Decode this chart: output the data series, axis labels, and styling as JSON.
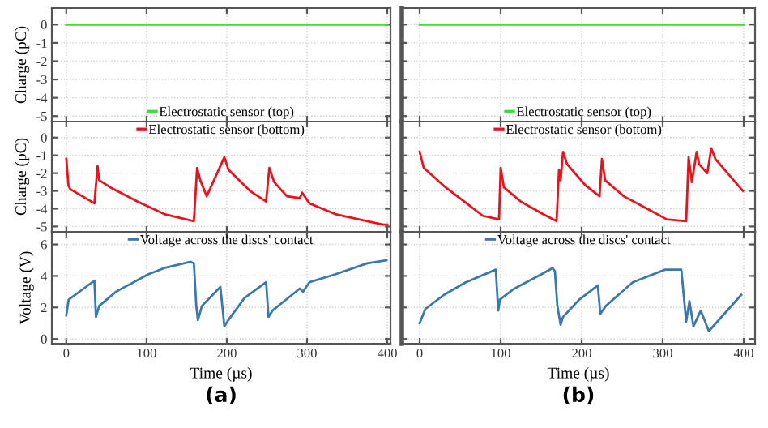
{
  "chart_data": [
    {
      "type": "line",
      "ylabel": "Charge (pC)",
      "x": [
        0,
        50,
        100,
        150,
        200,
        250,
        300,
        350,
        400
      ],
      "xlim": [
        -18,
        404
      ],
      "ylim": [
        -5.3,
        0.9
      ],
      "xticks": [
        0,
        100,
        200,
        300,
        400
      ],
      "yticks": [
        -5,
        -4,
        -3,
        -2,
        -1,
        0
      ],
      "tick_labels": "y",
      "grid": true,
      "legend": "bottom",
      "series": [
        {
          "name": "Electrostatic sensor (top)",
          "color": "#3ddc3d",
          "values": [
            0,
            0,
            0,
            0,
            0,
            0,
            0,
            0,
            0
          ]
        }
      ]
    },
    {
      "type": "line",
      "ylabel": "Charge (pC)",
      "x": [
        0,
        2.7,
        5,
        35,
        39,
        41,
        55,
        89,
        122,
        159,
        163,
        167,
        175,
        197,
        202,
        229,
        249,
        253,
        259,
        275,
        291,
        294,
        303,
        335,
        375,
        395,
        400
      ],
      "xlim": [
        -18,
        404
      ],
      "ylim": [
        -5.3,
        0.9
      ],
      "xticks": [
        0,
        100,
        200,
        300,
        400
      ],
      "yticks": [
        -5,
        -4,
        -3,
        -2,
        -1,
        0
      ],
      "tick_labels": "y",
      "grid": true,
      "legend": "top",
      "series": [
        {
          "name": "Electrostatic sensor (bottom)",
          "color": "#e8131c",
          "values": [
            -1.2,
            -2.7,
            -2.9,
            -3.7,
            -1.6,
            -2.4,
            -2.8,
            -3.6,
            -4.3,
            -4.7,
            -1.7,
            -2.4,
            -3.3,
            -1.1,
            -1.8,
            -3.0,
            -3.6,
            -1.7,
            -2.5,
            -3.3,
            -3.4,
            -3.1,
            -3.7,
            -4.3,
            -4.7,
            -4.9,
            -4.9
          ]
        }
      ]
    },
    {
      "type": "line",
      "ylabel": "Voltage (V)",
      "xlabel": "Time (µs)",
      "x": [
        0,
        3,
        35,
        37,
        41,
        62,
        102,
        122,
        155,
        159,
        162,
        164,
        169,
        192,
        197,
        202,
        222,
        249,
        252,
        257,
        269,
        291,
        295,
        303,
        335,
        375,
        399
      ],
      "xlim": [
        -18,
        404
      ],
      "ylim": [
        -0.3,
        6.8
      ],
      "xticks": [
        0,
        100,
        200,
        300,
        400
      ],
      "yticks": [
        0,
        2,
        4,
        6
      ],
      "grid": true,
      "legend": "top",
      "annotations": [
        "(a)"
      ],
      "series": [
        {
          "name": "Voltage across the discs' contact",
          "color": "#3b78b0",
          "values": [
            1.5,
            2.5,
            3.7,
            1.4,
            2.1,
            3.0,
            4.1,
            4.5,
            4.9,
            4.8,
            2.1,
            1.2,
            2.1,
            3.3,
            0.8,
            1.2,
            2.6,
            3.6,
            1.4,
            1.8,
            2.3,
            3.2,
            3.0,
            3.6,
            4.1,
            4.8,
            5.0
          ]
        }
      ]
    },
    {
      "type": "line",
      "x": [
        0,
        50,
        100,
        150,
        200,
        250,
        300,
        350,
        400
      ],
      "xlim": [
        -22,
        414
      ],
      "ylim": [
        -5.3,
        0.9
      ],
      "xticks": [
        0,
        100,
        200,
        300,
        400
      ],
      "yticks": [
        -5,
        -4,
        -3,
        -2,
        -1,
        0
      ],
      "tick_labels": false,
      "grid": true,
      "legend": "bottom",
      "series": [
        {
          "name": "Electrostatic sensor (top)",
          "color": "#3ddc3d",
          "values": [
            0,
            0,
            0,
            0,
            0,
            0,
            0,
            0,
            0
          ]
        }
      ]
    },
    {
      "type": "line",
      "x": [
        0,
        5,
        32,
        58,
        78,
        98,
        100,
        104,
        125,
        152,
        169,
        172,
        174,
        177,
        182,
        205,
        222,
        225,
        229,
        252,
        285,
        305,
        329,
        332,
        336,
        342,
        345,
        355,
        360,
        365,
        399
      ],
      "xlim": [
        -22,
        414
      ],
      "ylim": [
        -5.3,
        0.9
      ],
      "xticks": [
        0,
        100,
        200,
        300,
        400
      ],
      "yticks": [
        -5,
        -4,
        -3,
        -2,
        -1,
        0
      ],
      "tick_labels": false,
      "grid": true,
      "legend": "top",
      "series": [
        {
          "name": "Electrostatic sensor (bottom)",
          "color": "#e8131c",
          "values": [
            -0.8,
            -1.7,
            -2.8,
            -3.7,
            -4.4,
            -4.6,
            -1.7,
            -2.8,
            -3.6,
            -4.3,
            -4.7,
            -1.8,
            -2.4,
            -0.8,
            -1.5,
            -2.7,
            -3.3,
            -1.2,
            -2.4,
            -3.3,
            -4.1,
            -4.6,
            -4.7,
            -1.1,
            -2.5,
            -0.8,
            -1.5,
            -2.0,
            -0.6,
            -1.2,
            -3.0
          ]
        }
      ]
    },
    {
      "type": "line",
      "xlabel": "Time (µs)",
      "x": [
        0,
        7,
        30,
        57,
        94,
        97,
        99,
        117,
        150,
        164,
        167,
        170,
        174,
        177,
        197,
        220,
        223,
        230,
        263,
        303,
        323,
        329,
        333,
        338,
        347,
        357,
        397
      ],
      "xlim": [
        -22,
        414
      ],
      "ylim": [
        -0.3,
        6.8
      ],
      "xticks": [
        0,
        100,
        200,
        300,
        400
      ],
      "yticks": [
        0,
        2,
        4,
        6
      ],
      "tick_labels": "x",
      "grid": true,
      "legend": "top",
      "annotations": [
        "(b)"
      ],
      "series": [
        {
          "name": "Voltage across the discs' contact",
          "color": "#3b78b0",
          "values": [
            1.0,
            1.9,
            2.8,
            3.6,
            4.4,
            1.8,
            2.5,
            3.2,
            4.1,
            4.5,
            4.3,
            2.1,
            0.9,
            1.4,
            2.5,
            3.4,
            1.6,
            2.1,
            3.6,
            4.4,
            4.4,
            1.1,
            2.4,
            0.8,
            1.8,
            0.5,
            2.8
          ]
        }
      ]
    }
  ]
}
